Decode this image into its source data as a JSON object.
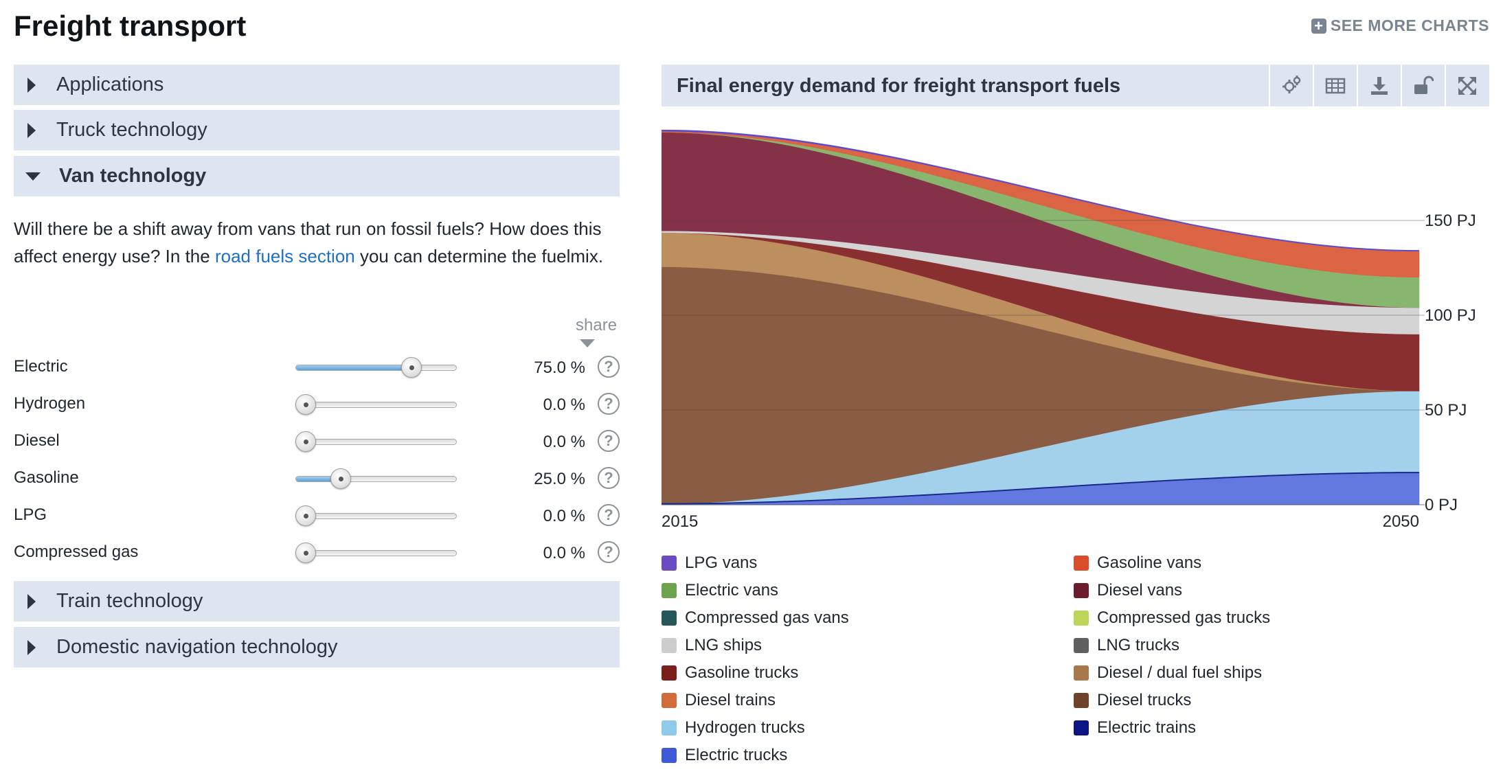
{
  "page": {
    "title": "Freight transport",
    "see_more": "SEE MORE CHARTS"
  },
  "accordion": {
    "applications": "Applications",
    "truck": "Truck technology",
    "van": "Van technology",
    "train": "Train technology",
    "navigation": "Domestic navigation technology"
  },
  "van_section": {
    "description_before": "Will there be a shift away from vans that run on fossil fuels? How does this affect energy use? In the ",
    "link_text": "road fuels section",
    "description_after": " you can determine the fuelmix.",
    "share_label": "share",
    "sliders": [
      {
        "label": "Electric",
        "value_text": "75.0 %",
        "value": 75.0
      },
      {
        "label": "Hydrogen",
        "value_text": "0.0 %",
        "value": 0.0
      },
      {
        "label": "Diesel",
        "value_text": "0.0 %",
        "value": 0.0
      },
      {
        "label": "Gasoline",
        "value_text": "25.0 %",
        "value": 25.0
      },
      {
        "label": "LPG",
        "value_text": "0.0 %",
        "value": 0.0
      },
      {
        "label": "Compressed gas",
        "value_text": "0.0 %",
        "value": 0.0
      }
    ]
  },
  "chart_panel": {
    "title": "Final energy demand for freight transport fuels",
    "buttons": [
      "settings-icon",
      "table-icon",
      "download-icon",
      "lock-icon",
      "expand-icon"
    ]
  },
  "chart_data": {
    "type": "area",
    "title": "Final energy demand for freight transport fuels",
    "x": [
      2015,
      2050
    ],
    "x_tick_labels": [
      "2015",
      "2050"
    ],
    "y_unit": "PJ",
    "y_ticks": [
      0,
      50,
      100,
      150
    ],
    "y_tick_labels": [
      "0 PJ",
      "50 PJ",
      "100 PJ",
      "150 PJ"
    ],
    "ylim": [
      0,
      196
    ],
    "grid": true,
    "stacked": true,
    "series": [
      {
        "name": "Electric trucks",
        "color": "#6379df",
        "values": [
          0.5,
          17
        ]
      },
      {
        "name": "Hydrogen trucks",
        "color": "#a3d1ec",
        "values": [
          0,
          43
        ]
      },
      {
        "name": "Diesel trucks",
        "color": "#8a5c43",
        "values": [
          125,
          0
        ]
      },
      {
        "name": "Diesel / dual fuel ships",
        "color": "#bd8e5e",
        "values": [
          18,
          0
        ]
      },
      {
        "name": "Gasoline trucks",
        "color": "#8a2f2f",
        "values": [
          0,
          30
        ]
      },
      {
        "name": "LNG ships",
        "color": "#d4d4d4",
        "values": [
          1,
          14
        ]
      },
      {
        "name": "Diesel vans",
        "color": "#853249",
        "values": [
          52,
          0
        ]
      },
      {
        "name": "Electric vans",
        "color": "#88b66e",
        "values": [
          0,
          16
        ]
      },
      {
        "name": "Gasoline vans",
        "color": "#db6444",
        "values": [
          0.5,
          14
        ]
      },
      {
        "name": "LPG vans",
        "color": "#6a4bc4",
        "values": [
          0.5,
          0
        ]
      }
    ],
    "legend": [
      {
        "name": "LPG vans",
        "color": "#6a4bc4"
      },
      {
        "name": "Gasoline vans",
        "color": "#db4c2b"
      },
      {
        "name": "Electric vans",
        "color": "#6ea34d"
      },
      {
        "name": "Diesel vans",
        "color": "#6d1c2e"
      },
      {
        "name": "Compressed gas vans",
        "color": "#25565a"
      },
      {
        "name": "Compressed gas trucks",
        "color": "#bcd65a"
      },
      {
        "name": "LNG ships",
        "color": "#cdcdcd"
      },
      {
        "name": "LNG trucks",
        "color": "#5f5f5f"
      },
      {
        "name": "Gasoline trucks",
        "color": "#7a1f1a"
      },
      {
        "name": "Diesel / dual fuel ships",
        "color": "#a8784a"
      },
      {
        "name": "Diesel trains",
        "color": "#d26b3a"
      },
      {
        "name": "Diesel trucks",
        "color": "#6e4329"
      },
      {
        "name": "Hydrogen trucks",
        "color": "#8ecbeb"
      },
      {
        "name": "Electric trains",
        "color": "#0b1585"
      },
      {
        "name": "Electric trucks",
        "color": "#3e5ad8"
      }
    ]
  }
}
